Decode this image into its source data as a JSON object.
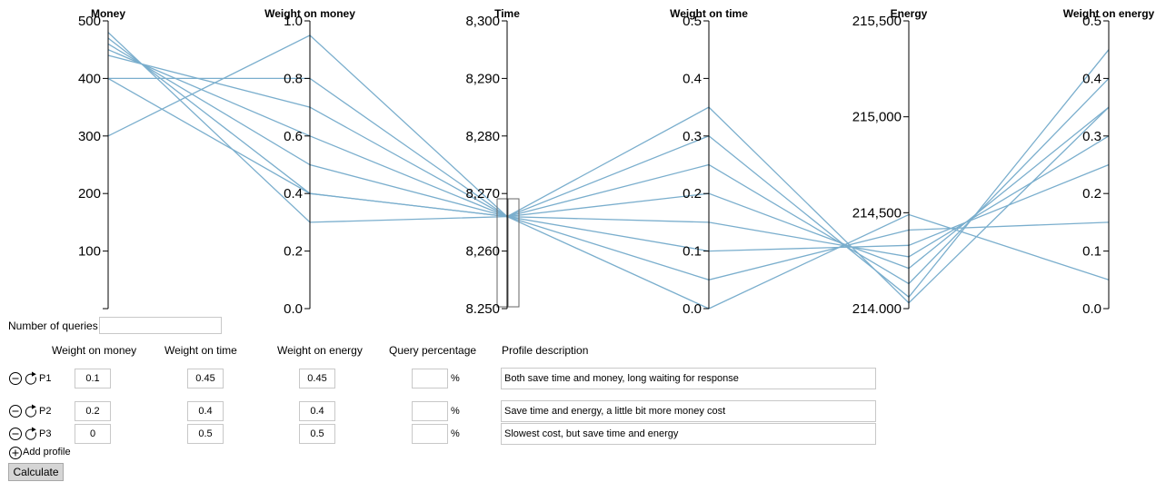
{
  "colors": {
    "line": "#7aaecd",
    "axis": "#000000",
    "brush": "#666666"
  },
  "chart_data": {
    "type": "parallel-coordinates",
    "axes": [
      {
        "title": "Money",
        "ticks": [
          {
            "v": 100,
            "label": "100"
          },
          {
            "v": 200,
            "label": "200"
          },
          {
            "v": 300,
            "label": "300"
          },
          {
            "v": 400,
            "label": "400"
          },
          {
            "v": 500,
            "label": "500"
          }
        ],
        "range": [
          0,
          500
        ]
      },
      {
        "title": "Weight on money",
        "ticks": [
          {
            "v": 0,
            "label": "0.0"
          },
          {
            "v": 0.2,
            "label": "0.2"
          },
          {
            "v": 0.4,
            "label": "0.4"
          },
          {
            "v": 0.6,
            "label": "0.6"
          },
          {
            "v": 0.8,
            "label": "0.8"
          },
          {
            "v": 1,
            "label": "1.0"
          }
        ],
        "range": [
          0,
          1
        ]
      },
      {
        "title": "Time",
        "ticks": [
          {
            "v": 8250,
            "label": "8,250"
          },
          {
            "v": 8260,
            "label": "8,260"
          },
          {
            "v": 8270,
            "label": "8,270"
          },
          {
            "v": 8280,
            "label": "8,280"
          },
          {
            "v": 8290,
            "label": "8,290"
          },
          {
            "v": 8300,
            "label": "8,300"
          }
        ],
        "range": [
          8250,
          8300
        ]
      },
      {
        "title": "Weight on time",
        "ticks": [
          {
            "v": 0,
            "label": "0.0"
          },
          {
            "v": 0.1,
            "label": "0.1"
          },
          {
            "v": 0.2,
            "label": "0.2"
          },
          {
            "v": 0.3,
            "label": "0.3"
          },
          {
            "v": 0.4,
            "label": "0.4"
          },
          {
            "v": 0.5,
            "label": "0.5"
          }
        ],
        "range": [
          0,
          0.5
        ]
      },
      {
        "title": "Energy",
        "ticks": [
          {
            "v": 214000,
            "label": "214,000"
          },
          {
            "v": 214500,
            "label": "214,500"
          },
          {
            "v": 215000,
            "label": "215,000"
          },
          {
            "v": 215500,
            "label": "215,500"
          }
        ],
        "range": [
          214000,
          215500
        ]
      },
      {
        "title": "Weight on energy",
        "ticks": [
          {
            "v": 0,
            "label": "0.0"
          },
          {
            "v": 0.1,
            "label": "0.1"
          },
          {
            "v": 0.2,
            "label": "0.2"
          },
          {
            "v": 0.3,
            "label": "0.3"
          },
          {
            "v": 0.4,
            "label": "0.4"
          },
          {
            "v": 0.5,
            "label": "0.5"
          }
        ],
        "range": [
          0,
          0.5
        ]
      }
    ],
    "lines": [
      [
        300,
        0.95,
        8266,
        0.0,
        214490,
        0.05
      ],
      [
        400,
        0.8,
        8266,
        0.05,
        214410,
        0.15
      ],
      [
        440,
        0.7,
        8266,
        0.1,
        214330,
        0.25
      ],
      [
        450,
        0.6,
        8266,
        0.15,
        214270,
        0.3
      ],
      [
        460,
        0.5,
        8266,
        0.2,
        214210,
        0.35
      ],
      [
        470,
        0.4,
        8266,
        0.25,
        214130,
        0.4
      ],
      [
        480,
        0.3,
        8266,
        0.3,
        214060,
        0.45
      ],
      [
        400,
        0.4,
        8266,
        0.35,
        214030,
        0.35
      ]
    ],
    "brush": {
      "axis": "Time",
      "extent": [
        8250,
        8269
      ]
    }
  },
  "form": {
    "queries_label": "Number of queries",
    "queries_value": "",
    "headers": {
      "money": "Weight on money",
      "time": "Weight on time",
      "energy": "Weight on energy",
      "percent": "Query percentage",
      "desc": "Profile description"
    },
    "profiles": [
      {
        "label": "P1",
        "money": "0.1",
        "time": "0.45",
        "energy": "0.45",
        "percent": "",
        "pct_sign": "%",
        "desc": "Both save time and money, long waiting for response"
      },
      {
        "label": "P2",
        "money": "0.2",
        "time": "0.4",
        "energy": "0.4",
        "percent": "",
        "pct_sign": "%",
        "desc": "Save time and energy, a little bit more money cost"
      },
      {
        "label": "P3",
        "money": "0",
        "time": "0.5",
        "energy": "0.5",
        "percent": "",
        "pct_sign": "%",
        "desc": "Slowest cost, but save time and energy"
      }
    ],
    "add_label": "Add profile",
    "calc_label": "Calculate"
  }
}
